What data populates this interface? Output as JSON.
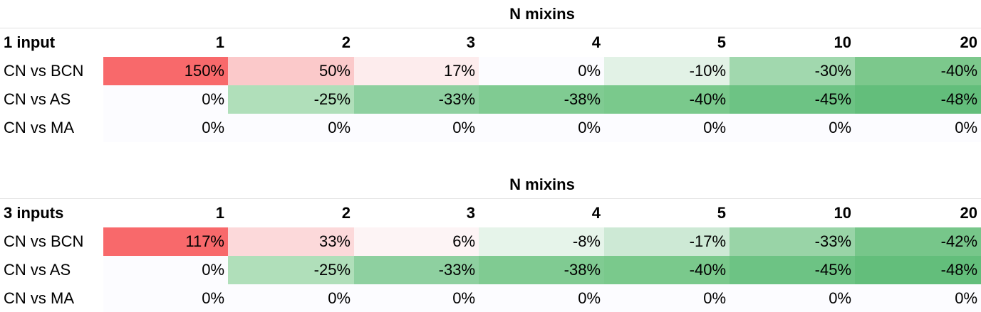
{
  "tables": [
    {
      "title": "N mixins",
      "header": [
        "1 input",
        "1",
        "2",
        "3",
        "4",
        "5",
        "10",
        "20"
      ],
      "rows": [
        [
          "CN vs BCN",
          "150%",
          "50%",
          "17%",
          "0%",
          "-10%",
          "-30%",
          "-40%"
        ],
        [
          "CN vs AS",
          "0%",
          "-25%",
          "-33%",
          "-38%",
          "-40%",
          "-45%",
          "-48%"
        ],
        [
          "CN vs MA",
          "0%",
          "0%",
          "0%",
          "0%",
          "0%",
          "0%",
          "0%"
        ]
      ]
    },
    {
      "title": "N mixins",
      "header": [
        "3 inputs",
        "1",
        "2",
        "3",
        "4",
        "5",
        "10",
        "20"
      ],
      "rows": [
        [
          "CN vs BCN",
          "117%",
          "33%",
          "6%",
          "-8%",
          "-17%",
          "-33%",
          "-42%"
        ],
        [
          "CN vs AS",
          "0%",
          "-25%",
          "-33%",
          "-38%",
          "-40%",
          "-45%",
          "-48%"
        ],
        [
          "CN vs MA",
          "0%",
          "0%",
          "0%",
          "0%",
          "0%",
          "0%",
          "0%"
        ]
      ]
    }
  ]
}
